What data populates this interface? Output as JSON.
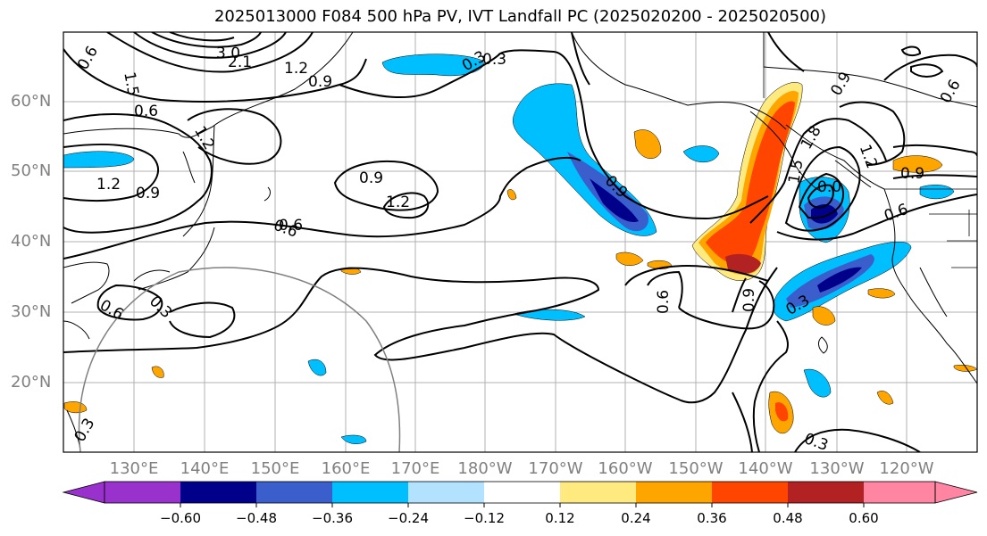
{
  "title": "2025013000 F084 500 hPa PV, IVT Landfall PC (2025020200 - 2025020500)",
  "lat_labels": [
    "60°N",
    "50°N",
    "40°N",
    "30°N",
    "20°N"
  ],
  "lon_labels": [
    "130°E",
    "140°E",
    "150°E",
    "160°E",
    "170°E",
    "180°W",
    "170°W",
    "160°W",
    "150°W",
    "140°W",
    "130°W",
    "120°W"
  ],
  "contour_labels": [
    "0.6",
    "1.5",
    "3.0",
    "2.1",
    "1.2",
    "0.9",
    "0.3",
    "0.6",
    "1.2",
    "0.9",
    "1.2",
    "0.9",
    "1.2",
    "0.6",
    "0.6",
    "0.3",
    "0.6",
    "0.3",
    "0.9",
    "0.6",
    "0.9",
    "1.5",
    "1.8",
    "0.9",
    "1.2",
    "0.6",
    "0.9",
    "0.3",
    "0.6",
    "0.3",
    "0.3",
    "0.0"
  ],
  "colorbar": {
    "ticks": [
      "−0.60",
      "−0.48",
      "−0.36",
      "−0.24",
      "−0.12",
      "0.12",
      "0.24",
      "0.36",
      "0.48",
      "0.60"
    ],
    "colors": [
      "#9932cc",
      "#00008b",
      "#3a5fcd",
      "#00bfff",
      "#b2e2ff",
      "#ffffff",
      "#ffea80",
      "#ffa500",
      "#ff4500",
      "#b22222",
      "#ff85a2"
    ]
  }
}
